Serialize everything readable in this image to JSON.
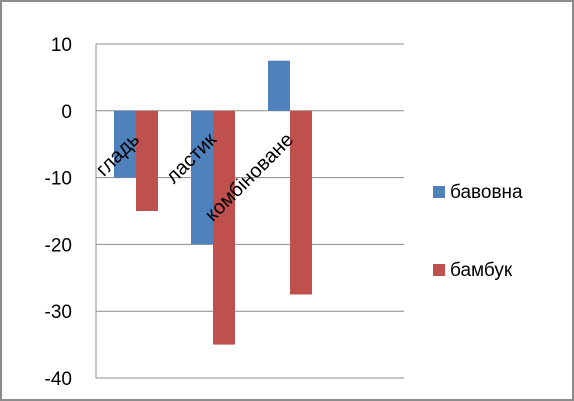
{
  "chart_data": {
    "type": "bar",
    "categories": [
      "гладь",
      "ластик",
      "комбіноване",
      ""
    ],
    "series": [
      {
        "name": "бавовна",
        "values": [
          -10,
          -20,
          7.5,
          null
        ],
        "color": "#4f81bd"
      },
      {
        "name": "бамбук",
        "values": [
          -15,
          -35,
          -27.5,
          null
        ],
        "color": "#c0504d"
      }
    ],
    "title": "",
    "xlabel": "",
    "ylabel": "",
    "ylim": [
      -40,
      10
    ],
    "yticks": [
      10,
      0,
      -10,
      -20,
      -30,
      -40
    ],
    "grid": true,
    "legend_position": "right"
  }
}
